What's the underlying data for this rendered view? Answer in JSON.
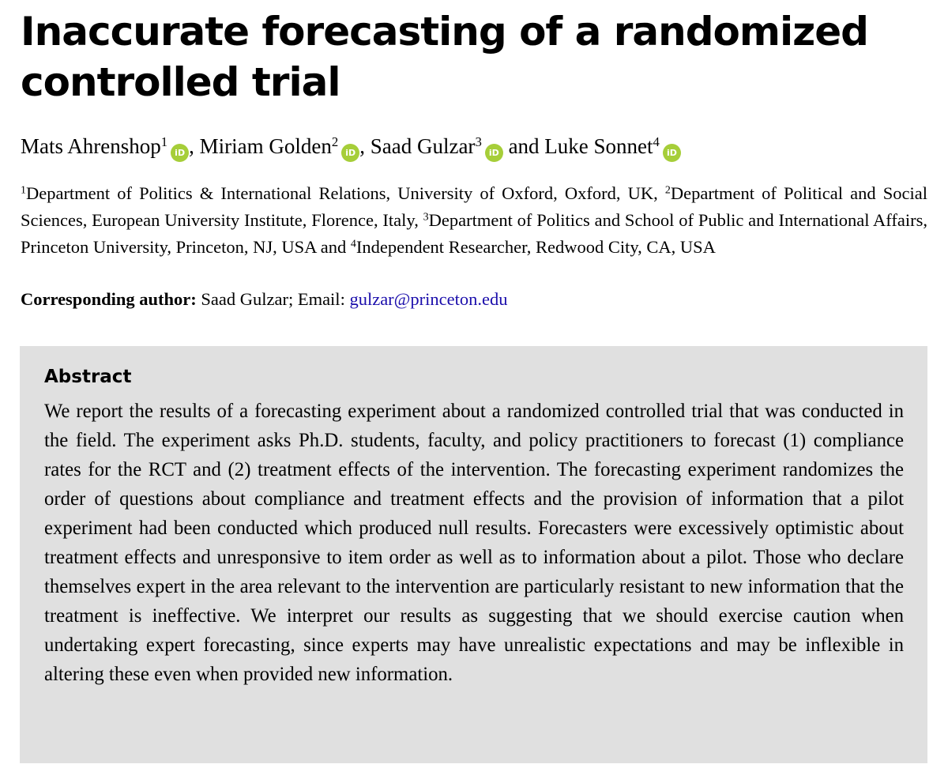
{
  "title": "Inaccurate forecasting of a randomized controlled trial",
  "authors": [
    {
      "name": "Mats Ahrenshop",
      "sup": "1",
      "orcid_icon": "orcid-icon"
    },
    {
      "name": "Miriam Golden",
      "sup": "2",
      "orcid_icon": "orcid-icon"
    },
    {
      "name": "Saad Gulzar",
      "sup": "3",
      "orcid_icon": "orcid-icon"
    },
    {
      "name": "Luke Sonnet",
      "sup": "4",
      "orcid_icon": "orcid-icon"
    }
  ],
  "author_separators": [
    ", ",
    ", ",
    " and "
  ],
  "orcid_glyph": "iD",
  "orcid_color": "#a6ce39",
  "affiliations": [
    {
      "sup": "1",
      "text": "Department of Politics & International Relations, University of Oxford, Oxford, UK, "
    },
    {
      "sup": "2",
      "text": "Department of Political and Social Sciences, European University Institute, Florence, Italy, "
    },
    {
      "sup": "3",
      "text": "Department of Politics and School of Public and International Affairs, Princeton University, Princeton, NJ, USA and "
    },
    {
      "sup": "4",
      "text": "Independent Researcher, Redwood City, CA, USA"
    }
  ],
  "corresponding": {
    "label": "Corresponding author:",
    "text": " Saad Gulzar; Email: ",
    "email": "gulzar@princeton.edu",
    "email_color": "#1a0dab"
  },
  "abstract": {
    "heading": "Abstract",
    "body": "We report the results of a forecasting experiment about a randomized controlled trial that was conducted in the field. The experiment asks Ph.D. students, faculty, and policy practitioners to forecast (1) compliance rates for the RCT and (2) treatment effects of the intervention. The forecasting experiment randomizes the order of questions about compliance and treatment effects and the provision of information that a pilot experiment had been conducted which produced null results. Forecasters were excessively optimistic about treatment effects and unresponsive to item order as well as to information about a pilot. Those who declare themselves expert in the area relevant to the intervention are particularly resistant to new information that the treatment is ineffective. We interpret our results as suggesting that we should exercise caution when undertaking expert forecasting, since experts may have unrealistic expectations and may be inflexible in altering these even when provided new information.",
    "background": "#e0e0e0"
  }
}
